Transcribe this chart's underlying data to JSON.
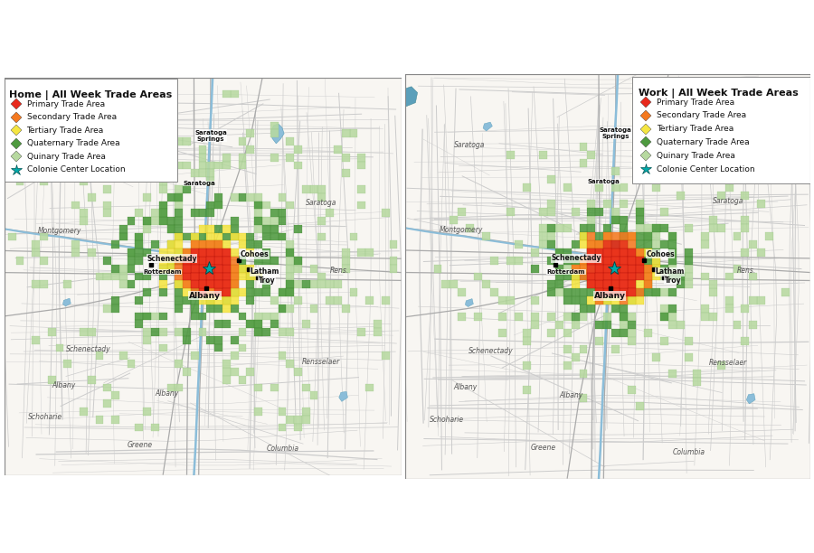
{
  "title_left": "Home | All Week Trade Areas",
  "title_right": "Work | All Week Trade Areas",
  "legend_items": [
    {
      "label": "Primary Trade Area",
      "color": "#e8291c",
      "marker": "D"
    },
    {
      "label": "Secondary Trade Area",
      "color": "#f47920",
      "marker": "D"
    },
    {
      "label": "Tertiary Trade Area",
      "color": "#f5e642",
      "marker": "D"
    },
    {
      "label": "Quaternary Trade Area",
      "color": "#4e9a3f",
      "marker": "D"
    },
    {
      "label": "Quinary Trade Area",
      "color": "#b7d9a0",
      "marker": "D"
    },
    {
      "label": "Colonie Center Location",
      "color": "#00aaaa",
      "marker": "*"
    }
  ],
  "primary_color": "#e8291c",
  "secondary_color": "#f47920",
  "tertiary_color": "#f5e642",
  "quaternary_color": "#4e9a3f",
  "quinary_color": "#b7d9a0",
  "star_color": "#00aaaa",
  "map_bg": "#f8f6f2",
  "road_color": "#cccccc",
  "road_dark": "#aaaaaa",
  "water_color": "#8bbdd9",
  "water_dark": "#5b9fba",
  "fig_bg": "#ffffff",
  "legend_fontsize": 6.5,
  "title_fontsize": 8,
  "city_fontsize": 6,
  "region_fontsize": 5.5
}
